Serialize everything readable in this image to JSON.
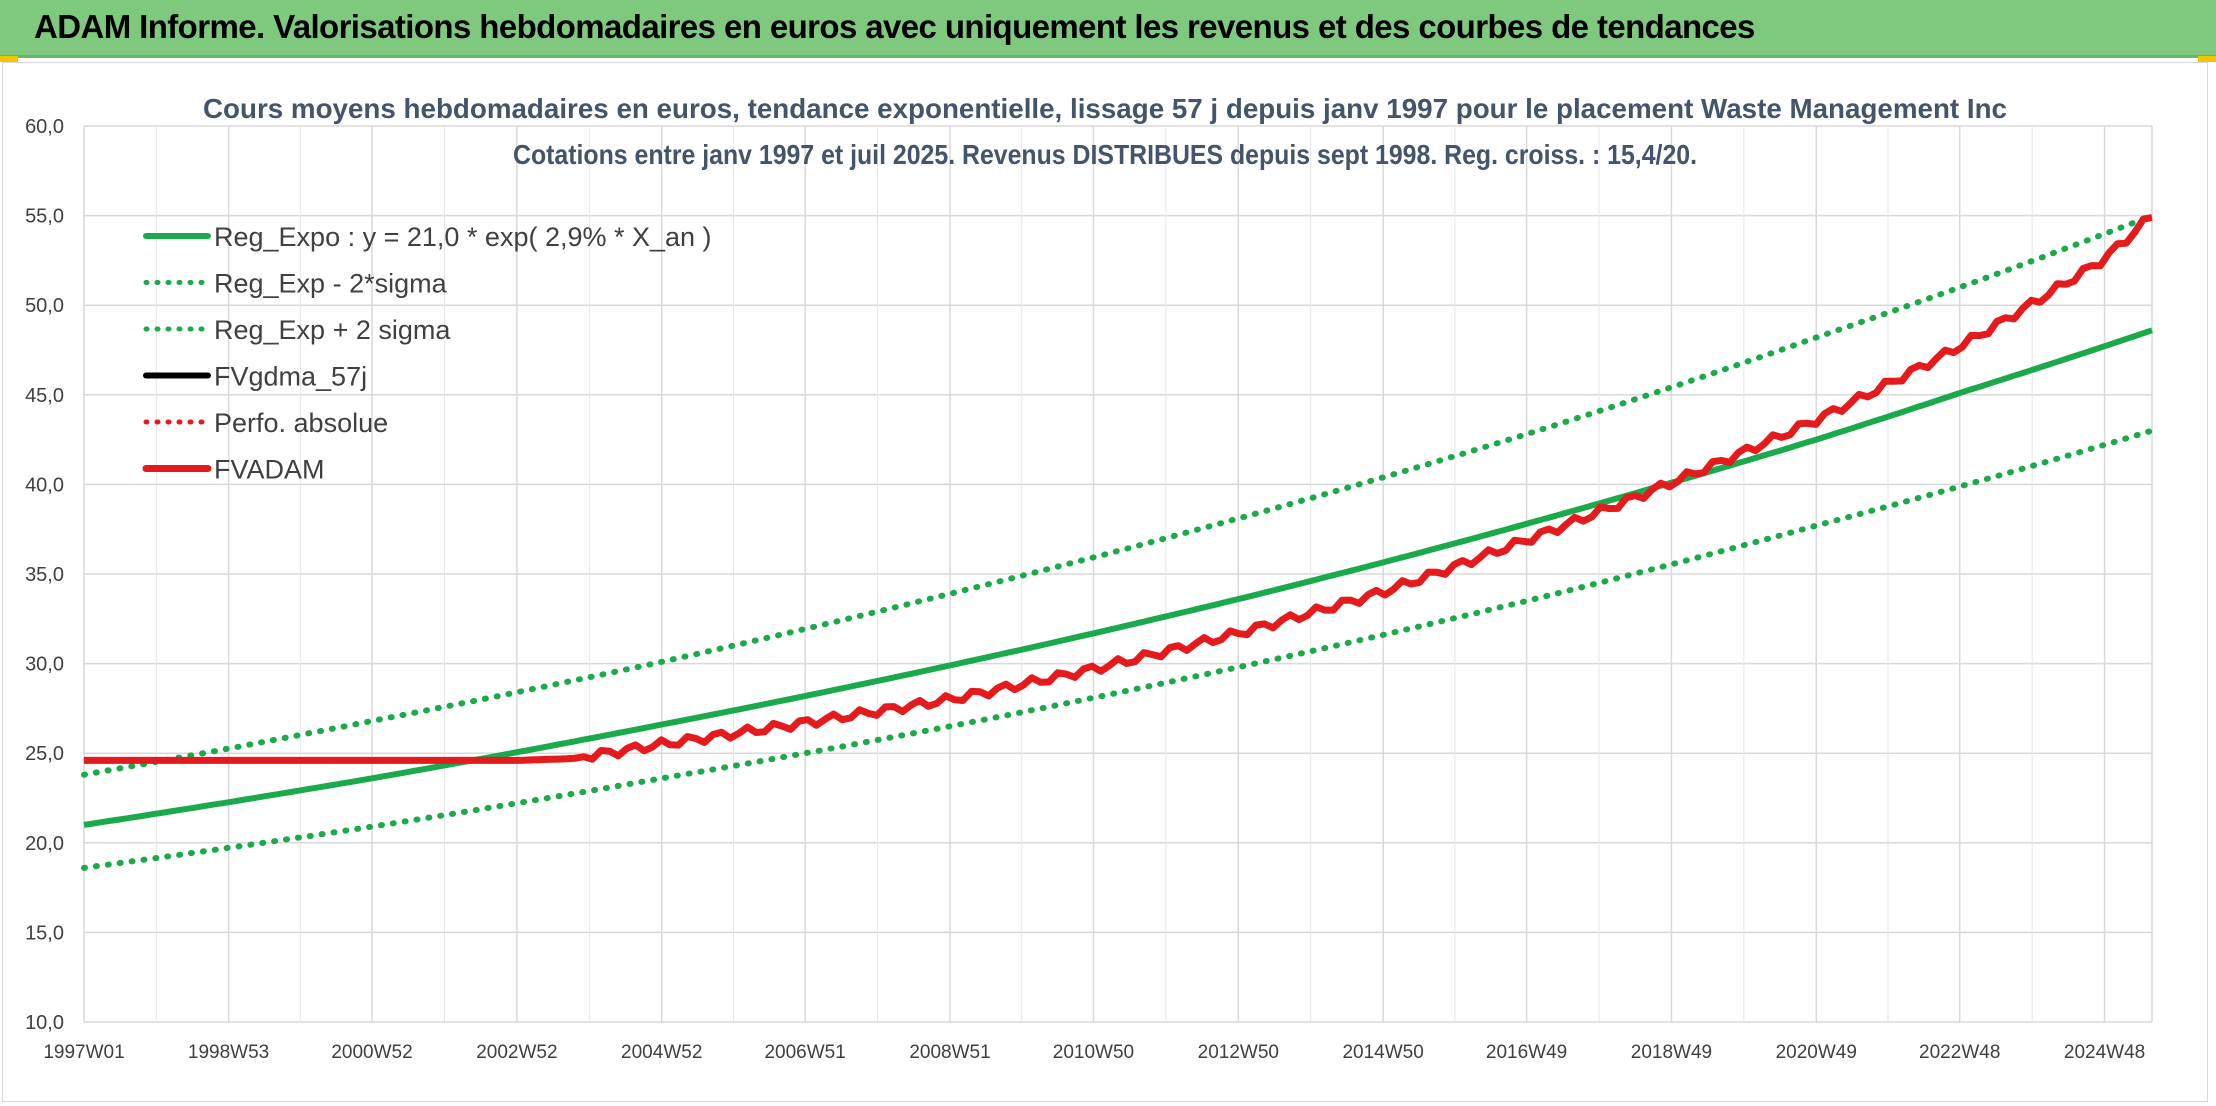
{
  "banner": {
    "title": "ADAM Informe. Valorisations hebdomadaires en euros avec uniquement les revenus et des courbes de tendances"
  },
  "colors": {
    "banner_bg": "#7fc97f",
    "trend_green": "#1aaa4b",
    "fvadam_red": "#e41a1c",
    "fvgdma_black": "#000000",
    "grid": "#d9d9d9"
  },
  "chart_data": {
    "type": "line",
    "title": "Cours moyens hebdomadaires en euros, tendance exponentielle, lissage 57 j depuis janv 1997 pour le placement Waste Management Inc",
    "subtitle": "Cotations entre janv 1997 et juil 2025. Revenus DISTRIBUES depuis sept 1998. Reg. croiss. : 15,4/20.",
    "xlabel": "",
    "ylabel": "",
    "ylim": [
      10,
      60
    ],
    "yticks": [
      "10,0",
      "15,0",
      "20,0",
      "25,0",
      "30,0",
      "35,0",
      "40,0",
      "45,0",
      "50,0",
      "55,0",
      "60,0"
    ],
    "x_range": [
      "1997W01",
      "2025W30"
    ],
    "xticks": [
      "1997W01",
      "1998W53",
      "2000W52",
      "2002W52",
      "2004W52",
      "2006W51",
      "2008W51",
      "2010W50",
      "2012W50",
      "2014W50",
      "2016W49",
      "2018W49",
      "2020W49",
      "2022W48",
      "2024W48"
    ],
    "grid": true,
    "legend_position": "top-left",
    "series": [
      {
        "name": "Reg_Expo : y = 21,0 * exp( 2,9% *  X_an )",
        "style": "solid",
        "color": "#1aaa4b",
        "x": [
          "1997W01",
          "2000W52",
          "2004W52",
          "2008W51",
          "2012W50",
          "2016W49",
          "2018W49",
          "2020W49",
          "2022W48",
          "2025W30"
        ],
        "y": [
          21.0,
          23.6,
          26.6,
          29.9,
          33.6,
          37.8,
          40.1,
          42.5,
          45.1,
          48.6
        ]
      },
      {
        "name": "Reg_Exp - 2*sigma",
        "style": "dotted",
        "color": "#1aaa4b",
        "x": [
          "1997W01",
          "2000W52",
          "2004W52",
          "2008W51",
          "2012W50",
          "2016W49",
          "2020W49",
          "2025W30"
        ],
        "y": [
          18.6,
          20.9,
          23.6,
          26.5,
          29.8,
          33.5,
          37.7,
          43.0
        ]
      },
      {
        "name": "Reg_Exp + 2 sigma",
        "style": "dotted",
        "color": "#1aaa4b",
        "x": [
          "1997W01",
          "2000W52",
          "2004W52",
          "2008W51",
          "2012W50",
          "2016W49",
          "2020W49",
          "2025W30"
        ],
        "y": [
          23.8,
          26.8,
          30.1,
          33.9,
          38.1,
          42.8,
          48.2,
          55.0
        ]
      },
      {
        "name": "FVgdma_57j",
        "style": "solid",
        "color": "#000000",
        "x": [],
        "y": []
      },
      {
        "name": "Perfo. absolue",
        "style": "dotted",
        "color": "#e41a1c",
        "x": [],
        "y": []
      },
      {
        "name": "FVADAM",
        "style": "solid-stepped",
        "color": "#e41a1c",
        "x": [
          "1997W01",
          "2000W52",
          "2002W52",
          "2003W40",
          "2004W52",
          "2006W51",
          "2008W51",
          "2010W50",
          "2012W50",
          "2014W50",
          "2016W49",
          "2018W49",
          "2020W49",
          "2022W48",
          "2024W48",
          "2025W30"
        ],
        "y": [
          24.6,
          24.6,
          24.6,
          24.7,
          25.5,
          26.7,
          28.0,
          29.7,
          31.7,
          34.0,
          36.9,
          40.1,
          43.6,
          47.7,
          52.6,
          55.0
        ]
      }
    ]
  }
}
